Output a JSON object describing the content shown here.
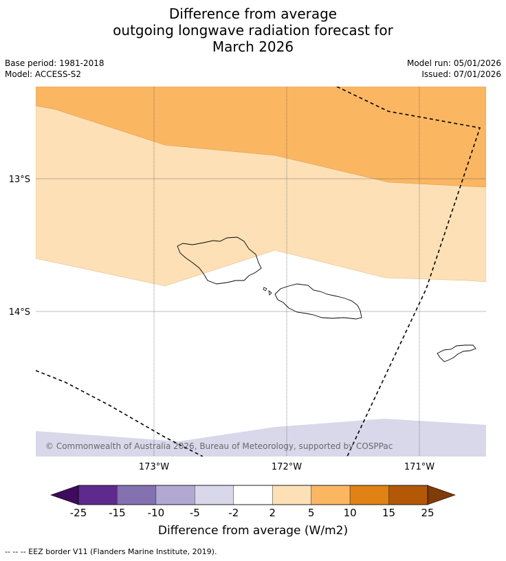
{
  "title": {
    "line1": "Difference from average",
    "line2": "outgoing longwave radiation forecast for",
    "line3": "March 2026"
  },
  "meta": {
    "base_period": "Base period: 1981-2018",
    "model": "Model: ACCESS-S2",
    "model_run": "Model run: 05/01/2026",
    "issued": "Issued: 07/01/2026"
  },
  "map": {
    "lat_labels": [
      "13°S",
      "14°S"
    ],
    "lon_labels": [
      "173°W",
      "172°W",
      "171°W"
    ],
    "copyright": "© Commonwealth of Australia 2026, Bureau of Meteorology, supported by COSPPac"
  },
  "colorbar": {
    "ticks": [
      "-25",
      "-15",
      "-10",
      "-5",
      "-2",
      "2",
      "5",
      "10",
      "15",
      "25"
    ],
    "colors": [
      "#5e2a8d",
      "#8471b0",
      "#b2a9d3",
      "#d8d8ea",
      "#ffffff",
      "#fde0b6",
      "#fbb662",
      "#e08214",
      "#b35806"
    ],
    "under_color": "#3f0b5c",
    "over_color": "#7f3b08",
    "label": "Difference from average (W/m2)"
  },
  "footnote": "--  --  -- EEZ border V11 (Flanders Marine Institute, 2019)."
}
